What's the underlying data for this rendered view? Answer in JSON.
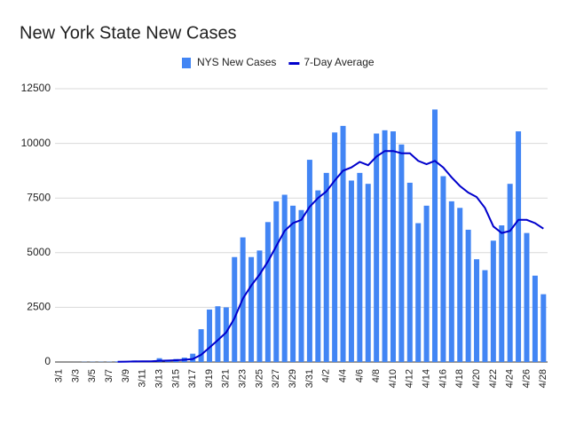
{
  "chart_data": {
    "type": "bar",
    "title": "New York State New Cases",
    "categories": [
      "3/1",
      null,
      "3/3",
      null,
      "3/5",
      null,
      "3/7",
      null,
      "3/9",
      null,
      "3/11",
      null,
      "3/13",
      null,
      "3/15",
      null,
      "3/17",
      null,
      "3/19",
      null,
      "3/21",
      null,
      "3/23",
      null,
      "3/25",
      null,
      "3/27",
      null,
      "3/29",
      null,
      "3/31",
      null,
      "4/2",
      null,
      "4/4",
      null,
      "4/6",
      null,
      "4/8",
      null,
      "4/10",
      null,
      "4/12",
      null,
      "4/14",
      null,
      "4/16",
      null,
      "4/18",
      null,
      "4/20",
      null,
      "4/22",
      null,
      "4/24",
      null,
      "4/26",
      null,
      "4/28"
    ],
    "series": [
      {
        "name": "NYS New Cases",
        "type": "bar",
        "color": "#4285f4",
        "values": [
          0,
          0,
          1,
          9,
          11,
          11,
          13,
          30,
          37,
          68,
          30,
          58,
          174,
          89,
          137,
          200,
          380,
          1500,
          2400,
          2550,
          2500,
          4800,
          5700,
          4800,
          5100,
          6400,
          7350,
          7650,
          7150,
          6950,
          9250,
          7850,
          8650,
          10500,
          10800,
          8300,
          8650,
          8150,
          10450,
          10600,
          10550,
          9950,
          8200,
          6350,
          7150,
          11550,
          8500,
          7350,
          7050,
          6050,
          4700,
          4200,
          5550,
          6250,
          8150,
          10550,
          5900,
          3950,
          3100
        ]
      },
      {
        "name": "7-Day Average",
        "type": "line",
        "color": "#0000cc",
        "values": [
          null,
          null,
          null,
          null,
          null,
          null,
          null,
          10,
          15,
          25,
          27,
          33,
          55,
          65,
          80,
          100,
          140,
          330,
          660,
          1000,
          1350,
          2000,
          2900,
          3500,
          4000,
          4600,
          5300,
          6000,
          6350,
          6500,
          7100,
          7500,
          7800,
          8300,
          8750,
          8900,
          9150,
          9000,
          9400,
          9650,
          9650,
          9550,
          9550,
          9200,
          9050,
          9200,
          8900,
          8450,
          8050,
          7750,
          7550,
          7050,
          6200,
          5900,
          6000,
          6500,
          6500,
          6350,
          6100
        ]
      }
    ],
    "ylim": [
      0,
      12500
    ],
    "yticks": [
      0,
      2500,
      5000,
      7500,
      10000,
      12500
    ],
    "grid": true,
    "legend": "top"
  }
}
